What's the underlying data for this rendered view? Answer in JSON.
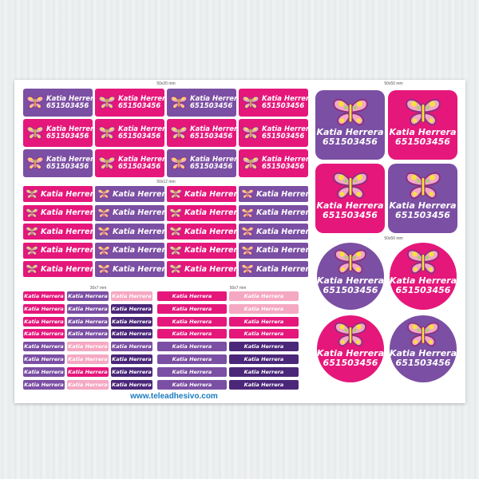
{
  "name": "Katia Herrera",
  "phone": "651503456",
  "sizes": {
    "s1": "50x20 mm",
    "s2": "50x50 mm",
    "s3": "50x12 mm",
    "s4": "50x50 mm",
    "s5": "30x7 mm",
    "s6": "50x7 mm"
  },
  "website": "www.teleadhesivo.com",
  "colors": {
    "purple": "#7b4fa3",
    "pink": "#e5177b",
    "light_pink": "#f5a8c2",
    "dark_purple": "#4b2779",
    "link": "#1a7cc0"
  },
  "icon": "butterfly-icon",
  "grid_20": [
    [
      "purple",
      "pink",
      "purple",
      "pink"
    ],
    [
      "pink",
      "pink",
      "pink",
      "pink"
    ],
    [
      "purple",
      "pink",
      "purple",
      "pink"
    ]
  ],
  "grid_12": [
    [
      "pink",
      "purple",
      "pink",
      "purple"
    ],
    [
      "pink",
      "purple",
      "pink",
      "purple"
    ],
    [
      "pink",
      "purple",
      "pink",
      "purple"
    ],
    [
      "pink",
      "purple",
      "pink",
      "purple"
    ],
    [
      "pink",
      "purple",
      "pink",
      "purple"
    ]
  ],
  "grid_7a": [
    [
      "pink",
      "purple",
      "lpink"
    ],
    [
      "pink",
      "purple",
      "dpurple"
    ],
    [
      "pink",
      "purple",
      "dpurple"
    ],
    [
      "pink",
      "purple",
      "dpurple"
    ],
    [
      "purple",
      "lpink",
      "purple"
    ],
    [
      "purple",
      "lpink",
      "dpurple"
    ],
    [
      "purple",
      "pink",
      "dpurple"
    ],
    [
      "purple",
      "lpink",
      "dpurple"
    ]
  ],
  "grid_7b": [
    [
      "pink",
      "lpink"
    ],
    [
      "pink",
      "lpink"
    ],
    [
      "pink",
      "pink"
    ],
    [
      "pink",
      "pink"
    ],
    [
      "purple",
      "dpurple"
    ],
    [
      "purple",
      "dpurple"
    ],
    [
      "purple",
      "dpurple"
    ],
    [
      "purple",
      "dpurple"
    ]
  ],
  "big_squares": [
    "purple",
    "pink",
    "pink",
    "purple"
  ],
  "big_circles": [
    "purple",
    "pink",
    "pink",
    "purple"
  ]
}
